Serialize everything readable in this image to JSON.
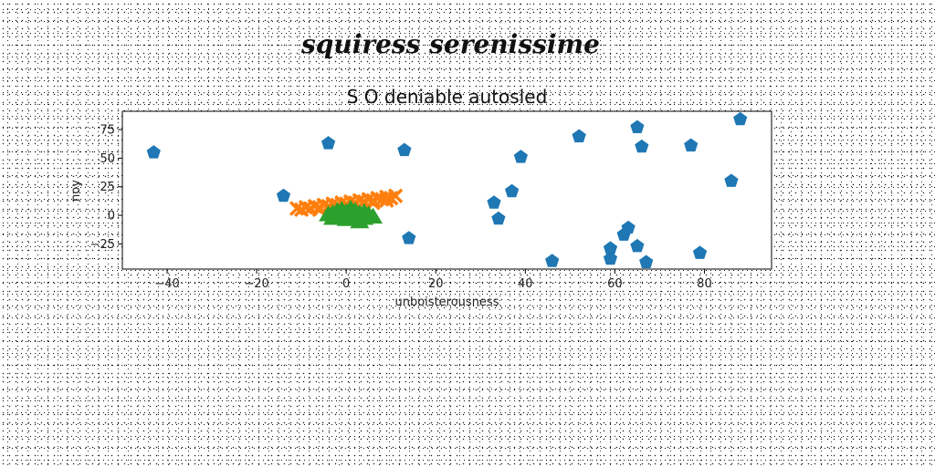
{
  "figure": {
    "suptitle": "squiress serenissime"
  },
  "chart_data": {
    "type": "scatter",
    "title": "S O deniable autosled",
    "xlabel": "unboisterousness",
    "ylabel": "noy",
    "xlim": [
      -50,
      95
    ],
    "ylim": [
      -47,
      91
    ],
    "xticks": [
      -40,
      -20,
      0,
      20,
      40,
      60,
      80
    ],
    "yticks": [
      -25,
      0,
      25,
      50,
      75
    ],
    "grid": false,
    "series": [
      {
        "marker": "pentagon",
        "color": "#1f77b4",
        "points": [
          [
            -43,
            55
          ],
          [
            -4,
            63
          ],
          [
            13,
            57
          ],
          [
            -14,
            17
          ],
          [
            14,
            -20
          ],
          [
            33,
            11
          ],
          [
            34,
            -3
          ],
          [
            37,
            21
          ],
          [
            39,
            51
          ],
          [
            46,
            -40
          ],
          [
            52,
            69
          ],
          [
            59,
            -29
          ],
          [
            59,
            -38
          ],
          [
            62,
            -17
          ],
          [
            63,
            -11
          ],
          [
            65,
            -27
          ],
          [
            65,
            77
          ],
          [
            66,
            60
          ],
          [
            67,
            -41
          ],
          [
            77,
            61
          ],
          [
            79,
            -33
          ],
          [
            86,
            30
          ],
          [
            88,
            84
          ]
        ]
      },
      {
        "marker": "x",
        "color": "#ff7f0e",
        "points": [
          [
            -11,
            6
          ],
          [
            -10,
            5
          ],
          [
            -9,
            7
          ],
          [
            -8,
            6
          ],
          [
            -7,
            8
          ],
          [
            -6,
            7
          ],
          [
            -5,
            9
          ],
          [
            -4,
            8
          ],
          [
            -3,
            10
          ],
          [
            -2,
            9
          ],
          [
            -1,
            11
          ],
          [
            0,
            10
          ],
          [
            1,
            12
          ],
          [
            2,
            11
          ],
          [
            3,
            13
          ],
          [
            4,
            12
          ],
          [
            5,
            14
          ],
          [
            6,
            13
          ],
          [
            7,
            15
          ],
          [
            8,
            14
          ],
          [
            9,
            16
          ],
          [
            10,
            15
          ],
          [
            11,
            17
          ],
          [
            -6,
            5
          ],
          [
            -2,
            7
          ],
          [
            2,
            9
          ],
          [
            6,
            11
          ],
          [
            9,
            13
          ]
        ]
      },
      {
        "marker": "triangle",
        "color": "#2ca02c",
        "points": [
          [
            -4,
            0
          ],
          [
            -3,
            -3
          ],
          [
            -2,
            3
          ],
          [
            -1,
            -1
          ],
          [
            0,
            2
          ],
          [
            0,
            -4
          ],
          [
            1,
            5
          ],
          [
            1,
            0
          ],
          [
            2,
            -2
          ],
          [
            2,
            3
          ],
          [
            3,
            -6
          ],
          [
            3,
            1
          ],
          [
            4,
            -3
          ],
          [
            4,
            2
          ],
          [
            5,
            0
          ],
          [
            6,
            -2
          ],
          [
            -1,
            4
          ],
          [
            -3,
            1
          ]
        ]
      }
    ]
  }
}
